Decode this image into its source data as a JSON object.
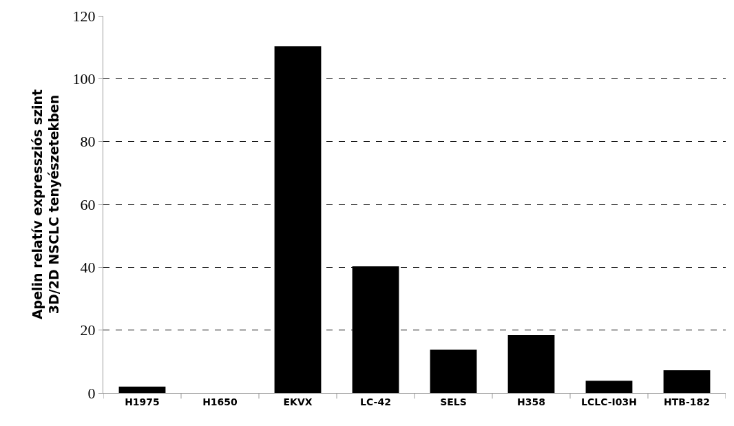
{
  "chart_data": {
    "type": "bar",
    "ylabel": "Apelin relatív expressziós szint\n3D/2D NSCLC tenyészetekben",
    "categories": [
      "H1975",
      "H1650",
      "EKVX",
      "LC-42",
      "SELS",
      "H358",
      "LCLC-I03H",
      "HTB-182"
    ],
    "values": [
      2,
      0,
      110.3,
      40.3,
      13.8,
      18.4,
      3.9,
      7.2
    ],
    "color": "#000000",
    "ylim": [
      0,
      120
    ],
    "yticks": [
      0,
      20,
      40,
      60,
      80,
      100,
      120
    ],
    "grid": "y"
  }
}
